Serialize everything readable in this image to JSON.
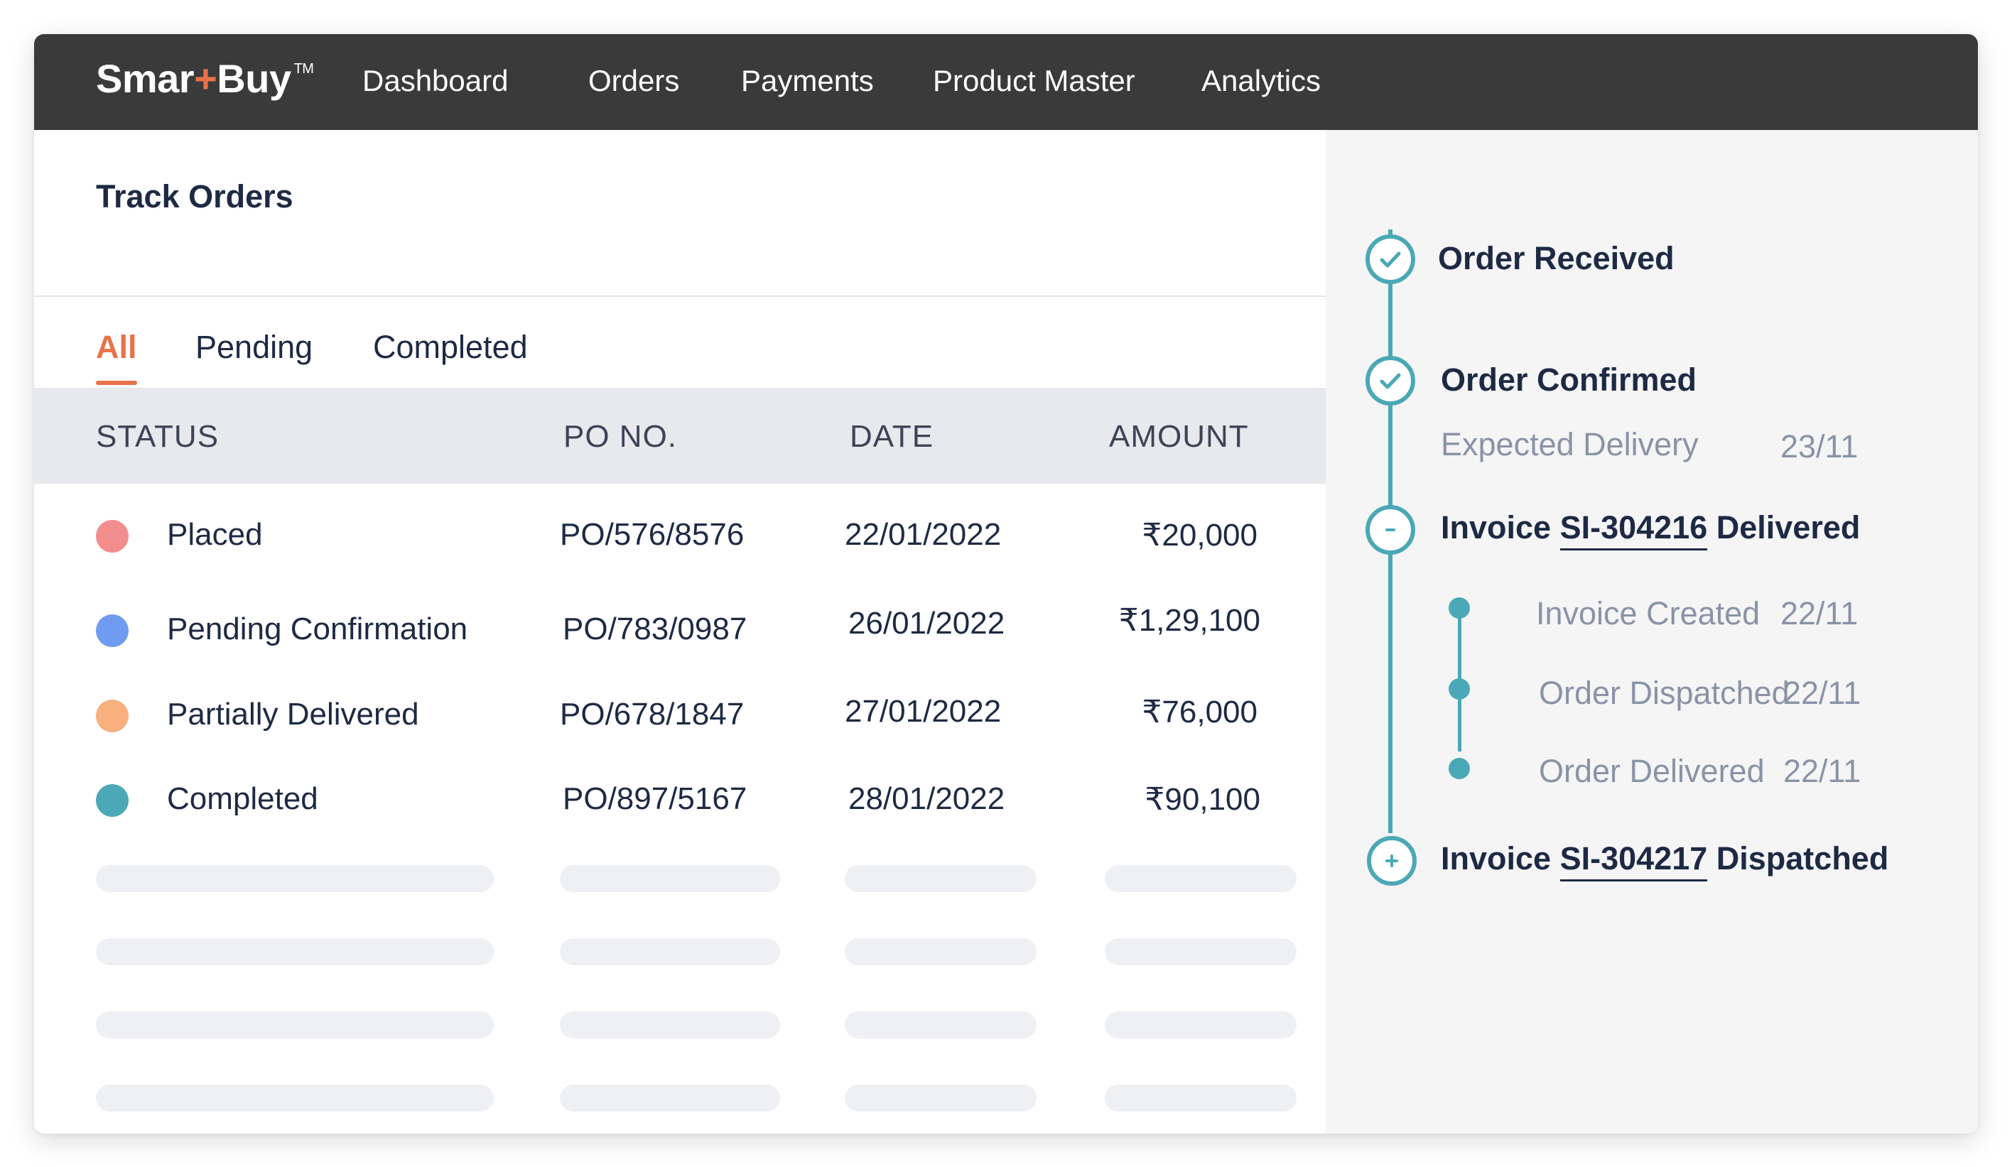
{
  "brand": {
    "name_a": "Smar",
    "name_plus": "+",
    "name_b": "Buy",
    "tm": "TM"
  },
  "nav": {
    "items": [
      "Dashboard",
      "Orders",
      "Payments",
      "Product Master",
      "Analytics"
    ]
  },
  "page": {
    "title": "Track Orders"
  },
  "tabs": [
    "All",
    "Pending",
    "Completed"
  ],
  "table": {
    "headers": [
      "STATUS",
      "PO NO.",
      "DATE",
      "AMOUNT"
    ],
    "rows": [
      {
        "status": "Placed",
        "po": "PO/576/8576",
        "date": "22/01/2022",
        "amount": "₹20,000",
        "color": "#f38d8d"
      },
      {
        "status": "Pending Confirmation",
        "po": "PO/783/0987",
        "date": "26/01/2022",
        "amount": "₹1,29,100",
        "color": "#6f9bf0"
      },
      {
        "status": "Partially Delivered",
        "po": "PO/678/1847",
        "date": "27/01/2022",
        "amount": "₹76,000",
        "color": "#f7b07e"
      },
      {
        "status": "Completed",
        "po": "PO/897/5167",
        "date": "28/01/2022",
        "amount": "₹90,100",
        "color": "#4ba8b6"
      }
    ]
  },
  "timeline": {
    "order_received": "Order Received",
    "order_confirmed": "Order Confirmed",
    "expected_delivery_label": "Expected Delivery",
    "expected_delivery_date": "23/11",
    "invoice1": {
      "prefix": "Invoice",
      "id": "SI-304216",
      "suffix": "Delivered"
    },
    "sub_steps": [
      {
        "label": "Invoice Created",
        "date": "22/11"
      },
      {
        "label": "Order Dispatched",
        "date": "22/11"
      },
      {
        "label": "Order Delivered",
        "date": "22/11"
      }
    ],
    "invoice2": {
      "prefix": "Invoice",
      "id": "SI-304217",
      "suffix": "Dispatched"
    },
    "accent_color": "#4ba8b6"
  }
}
